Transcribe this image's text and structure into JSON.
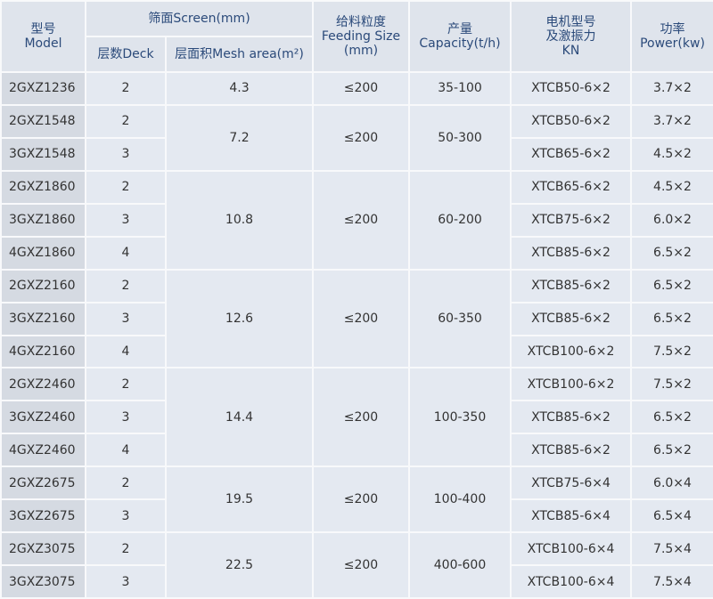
{
  "header": {
    "model": [
      "型号",
      "Model"
    ],
    "screen": "筛面Screen(mm)",
    "deck": "层数Deck",
    "mesh_area": "层面积Mesh area(m²)",
    "feeding_size": [
      "给料粒度",
      "Feeding Size",
      "(mm)"
    ],
    "capacity": [
      "产量",
      "Capacity(t/h)"
    ],
    "motor": [
      "电机型号",
      "及激振力",
      "KN"
    ],
    "power": [
      "功率",
      "Power(kw)"
    ]
  },
  "groups": [
    {
      "mesh_area": "4.3",
      "feeding_size": "≤200",
      "capacity": "35-100",
      "rows": [
        {
          "model": "2GXZ1236",
          "deck": "2",
          "motor": "XTCB50-6×2",
          "power": "3.7×2"
        }
      ]
    },
    {
      "mesh_area": "7.2",
      "feeding_size": "≤200",
      "capacity": "50-300",
      "rows": [
        {
          "model": "2GXZ1548",
          "deck": "2",
          "motor": "XTCB50-6×2",
          "power": "3.7×2"
        },
        {
          "model": "3GXZ1548",
          "deck": "3",
          "motor": "XTCB65-6×2",
          "power": "4.5×2"
        }
      ]
    },
    {
      "mesh_area": "10.8",
      "feeding_size": "≤200",
      "capacity": "60-200",
      "rows": [
        {
          "model": "2GXZ1860",
          "deck": "2",
          "motor": "XTCB65-6×2",
          "power": "4.5×2"
        },
        {
          "model": "3GXZ1860",
          "deck": "3",
          "motor": "XTCB75-6×2",
          "power": "6.0×2"
        },
        {
          "model": "4GXZ1860",
          "deck": "4",
          "motor": "XTCB85-6×2",
          "power": "6.5×2"
        }
      ]
    },
    {
      "mesh_area": "12.6",
      "feeding_size": "≤200",
      "capacity": "60-350",
      "rows": [
        {
          "model": "2GXZ2160",
          "deck": "2",
          "motor": "XTCB85-6×2",
          "power": "6.5×2"
        },
        {
          "model": "3GXZ2160",
          "deck": "3",
          "motor": "XTCB85-6×2",
          "power": "6.5×2"
        },
        {
          "model": "4GXZ2160",
          "deck": "4",
          "motor": "XTCB100-6×2",
          "power": "7.5×2"
        }
      ]
    },
    {
      "mesh_area": "14.4",
      "feeding_size": "≤200",
      "capacity": "100-350",
      "rows": [
        {
          "model": "2GXZ2460",
          "deck": "2",
          "motor": "XTCB100-6×2",
          "power": "7.5×2"
        },
        {
          "model": "3GXZ2460",
          "deck": "3",
          "motor": "XTCB85-6×2",
          "power": "6.5×2"
        },
        {
          "model": "4GXZ2460",
          "deck": "4",
          "motor": "XTCB85-6×2",
          "power": "6.5×2"
        }
      ]
    },
    {
      "mesh_area": "19.5",
      "feeding_size": "≤200",
      "capacity": "100-400",
      "rows": [
        {
          "model": "2GXZ2675",
          "deck": "2",
          "motor": "XTCB75-6×4",
          "power": "6.0×4"
        },
        {
          "model": "3GXZ2675",
          "deck": "3",
          "motor": "XTCB85-6×4",
          "power": "6.5×4"
        }
      ]
    },
    {
      "mesh_area": "22.5",
      "feeding_size": "≤200",
      "capacity": "400-600",
      "rows": [
        {
          "model": "2GXZ3075",
          "deck": "2",
          "motor": "XTCB100-6×4",
          "power": "7.5×4"
        },
        {
          "model": "3GXZ3075",
          "deck": "3",
          "motor": "XTCB100-6×4",
          "power": "7.5×4"
        }
      ]
    }
  ]
}
